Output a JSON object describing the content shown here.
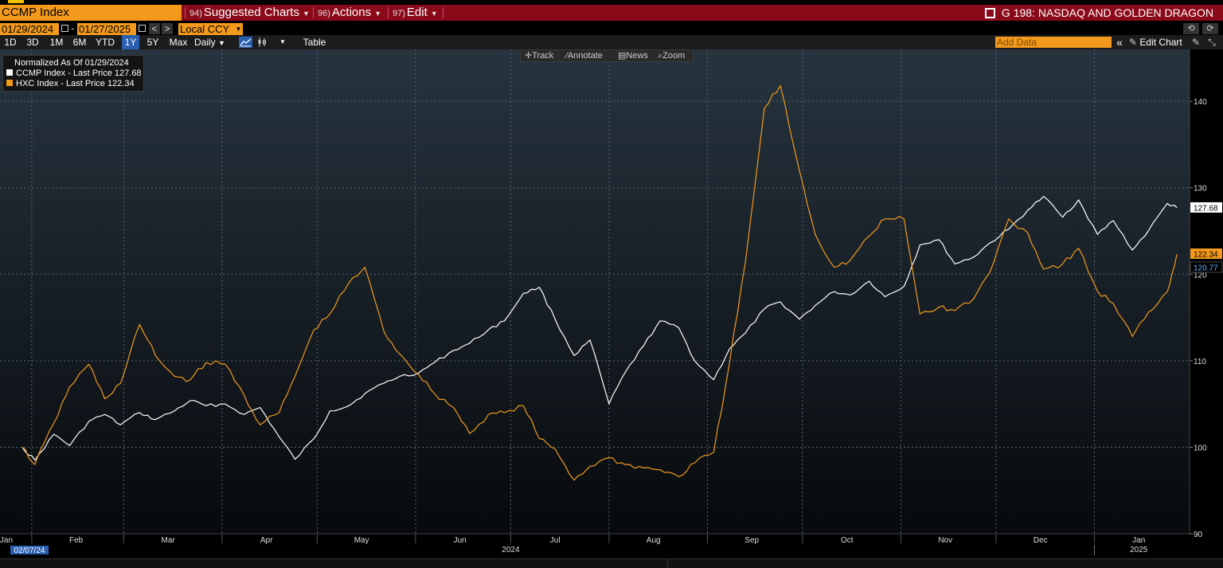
{
  "header": {
    "ticker": "CCMP Index",
    "menus": [
      {
        "num": "94)",
        "label": "Suggested Charts"
      },
      {
        "num": "96)",
        "label": "Actions"
      },
      {
        "num": "97)",
        "label": "Edit"
      }
    ],
    "chart_name": "G 198: NASDAQ AND GOLDEN DRAGON"
  },
  "date_row": {
    "start": "01/29/2024",
    "dash": "-",
    "end": "01/27/2025",
    "prev": "<",
    "next": ">",
    "currency": "Local CCY"
  },
  "toolbar": {
    "periods": [
      "1D",
      "3D",
      "1M",
      "6M",
      "YTD",
      "1Y",
      "5Y",
      "Max"
    ],
    "selected_period": "1Y",
    "frequency": "Daily",
    "table_label": "Table",
    "add_data_placeholder": "Add Data",
    "edit_chart": "Edit Chart"
  },
  "mini_tools": [
    "Track",
    "Annotate",
    "News",
    "Zoom"
  ],
  "legend": {
    "title": "Normalized As Of 01/29/2024",
    "items": [
      {
        "name": "CCMP Index - Last Price",
        "value": "127.68",
        "color": "#ffffff"
      },
      {
        "name": "HXC Index - Last Price",
        "value": "122.34",
        "color": "#f39a1c"
      }
    ]
  },
  "colors": {
    "ccmp": "#ffffff",
    "hxc": "#f39a1c",
    "header_red": "#8a0a1a",
    "orange": "#f39a1c",
    "highlight_blue": "#2a5fb0"
  },
  "chart_data": {
    "type": "line",
    "title": "",
    "xlabel": "",
    "ylabel": "",
    "ylim": [
      90,
      146
    ],
    "yticks": [
      90,
      100,
      110,
      120,
      130,
      140
    ],
    "months": [
      "Jan",
      "Feb",
      "Mar",
      "Apr",
      "May",
      "Jun",
      "Jul",
      "Aug",
      "Sep",
      "Oct",
      "Nov",
      "Dec",
      "Jan"
    ],
    "years": [
      "2024",
      "2025"
    ],
    "cursor_date": "02/07/24",
    "right_labels": [
      {
        "value": 127.68,
        "text": "127.68",
        "series": "ccmp"
      },
      {
        "value": 122.34,
        "text": "122.34",
        "series": "hxc"
      },
      {
        "value": 120.77,
        "text": "120.77",
        "series": "ref"
      }
    ],
    "series": [
      {
        "name": "CCMP Index - Last Price",
        "key": "ccmp",
        "x": [
          "2024-01-29",
          "2024-02-02",
          "2024-02-08",
          "2024-02-13",
          "2024-02-19",
          "2024-02-24",
          "2024-02-29",
          "2024-03-06",
          "2024-03-11",
          "2024-03-17",
          "2024-03-22",
          "2024-03-27",
          "2024-04-02",
          "2024-04-08",
          "2024-04-13",
          "2024-04-19",
          "2024-04-24",
          "2024-04-30",
          "2024-05-05",
          "2024-05-11",
          "2024-05-16",
          "2024-05-22",
          "2024-05-27",
          "2024-06-02",
          "2024-06-07",
          "2024-06-13",
          "2024-06-18",
          "2024-06-24",
          "2024-06-29",
          "2024-07-05",
          "2024-07-10",
          "2024-07-15",
          "2024-07-21",
          "2024-07-26",
          "2024-08-01",
          "2024-08-06",
          "2024-08-12",
          "2024-08-17",
          "2024-08-23",
          "2024-08-28",
          "2024-09-03",
          "2024-09-08",
          "2024-09-13",
          "2024-09-19",
          "2024-09-24",
          "2024-09-30",
          "2024-10-05",
          "2024-10-11",
          "2024-10-16",
          "2024-10-22",
          "2024-10-27",
          "2024-11-02",
          "2024-11-07",
          "2024-11-13",
          "2024-11-18",
          "2024-11-24",
          "2024-11-29",
          "2024-12-05",
          "2024-12-11",
          "2024-12-16",
          "2024-12-22",
          "2024-12-27",
          "2025-01-02",
          "2025-01-07",
          "2025-01-13",
          "2025-01-18",
          "2025-01-24",
          "2025-01-27"
        ],
        "values": [
          100.0,
          98.5,
          101.5,
          100.2,
          103.0,
          103.8,
          102.6,
          104.0,
          103.2,
          104.2,
          105.4,
          104.8,
          105.0,
          103.8,
          104.6,
          101.2,
          98.6,
          101.0,
          104.2,
          104.8,
          106.2,
          107.4,
          108.2,
          108.6,
          109.8,
          111.2,
          112.0,
          113.6,
          114.6,
          117.8,
          118.5,
          114.8,
          110.6,
          112.4,
          105.0,
          108.6,
          111.8,
          114.6,
          113.8,
          110.0,
          107.8,
          111.4,
          113.2,
          116.0,
          116.8,
          114.8,
          116.4,
          118.0,
          117.6,
          119.2,
          117.4,
          118.6,
          123.4,
          124.0,
          121.2,
          122.0,
          123.6,
          125.2,
          127.4,
          129.0,
          126.6,
          128.6,
          124.6,
          126.2,
          122.8,
          125.0,
          128.2,
          127.68
        ]
      },
      {
        "name": "HXC Index - Last Price",
        "key": "hxc",
        "x": [
          "2024-01-29",
          "2024-02-02",
          "2024-02-08",
          "2024-02-13",
          "2024-02-19",
          "2024-02-24",
          "2024-02-29",
          "2024-03-06",
          "2024-03-11",
          "2024-03-17",
          "2024-03-22",
          "2024-03-27",
          "2024-04-02",
          "2024-04-08",
          "2024-04-13",
          "2024-04-19",
          "2024-04-24",
          "2024-04-30",
          "2024-05-05",
          "2024-05-11",
          "2024-05-16",
          "2024-05-22",
          "2024-05-27",
          "2024-06-02",
          "2024-06-07",
          "2024-06-13",
          "2024-06-18",
          "2024-06-24",
          "2024-06-29",
          "2024-07-05",
          "2024-07-10",
          "2024-07-15",
          "2024-07-21",
          "2024-07-26",
          "2024-08-01",
          "2024-08-06",
          "2024-08-12",
          "2024-08-17",
          "2024-08-23",
          "2024-08-28",
          "2024-09-03",
          "2024-09-08",
          "2024-09-13",
          "2024-09-19",
          "2024-09-24",
          "2024-09-30",
          "2024-10-05",
          "2024-10-11",
          "2024-10-16",
          "2024-10-22",
          "2024-10-27",
          "2024-11-02",
          "2024-11-07",
          "2024-11-13",
          "2024-11-18",
          "2024-11-24",
          "2024-11-29",
          "2024-12-05",
          "2024-12-11",
          "2024-12-16",
          "2024-12-22",
          "2024-12-27",
          "2025-01-02",
          "2025-01-07",
          "2025-01-13",
          "2025-01-18",
          "2025-01-24",
          "2025-01-27"
        ],
        "values": [
          100.0,
          98.0,
          102.8,
          107.0,
          109.6,
          105.6,
          107.4,
          114.2,
          110.6,
          108.2,
          107.8,
          109.8,
          109.6,
          106.0,
          102.6,
          104.0,
          108.2,
          113.6,
          115.4,
          119.0,
          120.8,
          113.4,
          110.8,
          108.4,
          106.2,
          104.6,
          101.6,
          103.8,
          104.0,
          104.8,
          101.0,
          99.8,
          96.2,
          97.8,
          98.8,
          98.0,
          97.6,
          97.4,
          96.6,
          98.2,
          99.4,
          109.8,
          121.4,
          139.2,
          141.8,
          132.0,
          124.6,
          120.8,
          121.6,
          124.4,
          126.4,
          126.4,
          115.4,
          116.2,
          115.8,
          117.2,
          120.2,
          126.4,
          124.8,
          120.6,
          121.2,
          123.0,
          118.0,
          116.6,
          112.8,
          115.6,
          118.0,
          122.34
        ]
      }
    ]
  }
}
